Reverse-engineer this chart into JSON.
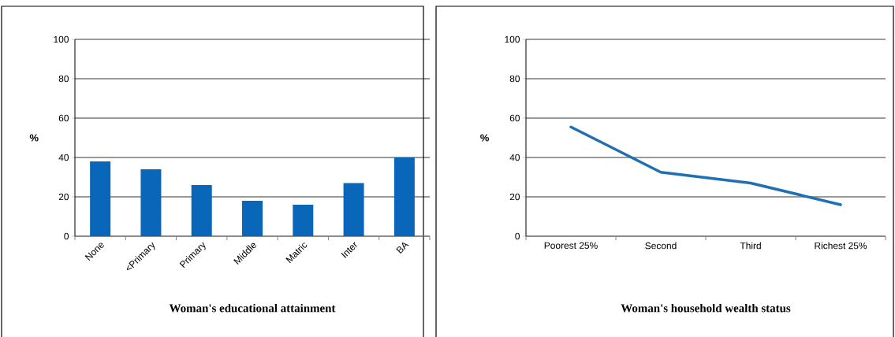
{
  "chart_data": [
    {
      "type": "bar",
      "categories": [
        "None",
        "<Primary",
        "Primary",
        "Middle",
        "Matric",
        "Inter",
        "BA"
      ],
      "values": [
        38,
        34,
        26,
        18,
        16,
        27,
        40
      ],
      "color": "#0a66b8",
      "xlabel": "Woman's educational attainment",
      "ylabel": "%",
      "ylim": [
        0,
        100
      ],
      "yticks": [
        0,
        20,
        40,
        60,
        80,
        100
      ],
      "grid": "y"
    },
    {
      "type": "line",
      "categories": [
        "Poorest 25%",
        "Second",
        "Third",
        "Richest 25%"
      ],
      "values": [
        55.5,
        32.5,
        27,
        16
      ],
      "color": "#1f6fb5",
      "xlabel": "Woman's household wealth status",
      "ylabel": "%",
      "ylim": [
        0,
        100
      ],
      "yticks": [
        0,
        20,
        40,
        60,
        80,
        100
      ],
      "grid": "y"
    }
  ]
}
